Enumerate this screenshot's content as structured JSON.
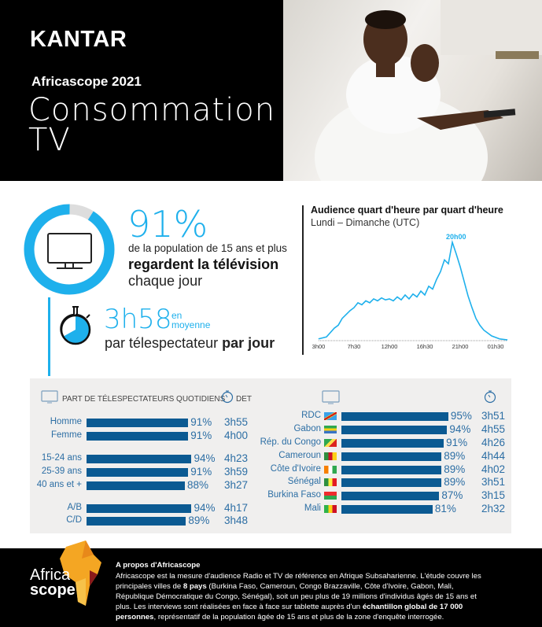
{
  "header": {
    "brand": "KANTAR",
    "subtitle": "Africascope 2021",
    "title_line1": "Consommation",
    "title_line2": "TV"
  },
  "reach": {
    "percent_label": "91%",
    "percent": 91,
    "line1": "de la population de 15 ans et plus",
    "line2": "regardent la télévision",
    "line3": "chaque jour",
    "icon": "tv-icon"
  },
  "duration": {
    "value": "3h58",
    "suffix1": "en",
    "suffix2": "moyenne",
    "line_a": "par télespectateur ",
    "line_b": "par jour",
    "icon": "stopwatch-icon"
  },
  "chart_data": {
    "type": "line",
    "title": "Audience quart d'heure par quart d'heure",
    "subtitle": "Lundi – Dimanche (UTC)",
    "annotation": "20h00",
    "x_ticks": [
      "3h00",
      "7h30",
      "12h00",
      "16h30",
      "21h00",
      "01h30"
    ],
    "x_hours": [
      3,
      4,
      5,
      5.5,
      6,
      6.5,
      7,
      7.5,
      8,
      8.5,
      9,
      9.5,
      10,
      10.5,
      11,
      11.5,
      12,
      12.5,
      13,
      13.5,
      14,
      14.5,
      15,
      15.5,
      16,
      16.5,
      17,
      17.5,
      18,
      18.5,
      19,
      19.5,
      20,
      20.5,
      21,
      21.5,
      22,
      22.5,
      23,
      23.5,
      24,
      25,
      26,
      27
    ],
    "y_relative": [
      1,
      3,
      12,
      15,
      22,
      26,
      30,
      33,
      38,
      36,
      40,
      38,
      42,
      40,
      43,
      41,
      42,
      40,
      44,
      41,
      46,
      42,
      47,
      44,
      50,
      46,
      55,
      52,
      62,
      70,
      82,
      78,
      100,
      88,
      75,
      60,
      45,
      33,
      22,
      15,
      10,
      4,
      1,
      0
    ],
    "y_axis": "none (relative, peak = 100)",
    "color": "#1eb0ec",
    "grid": false
  },
  "colors": {
    "accent": "#1eb0ec",
    "bar": "#0b5a92",
    "text_blue": "#2c6ea4",
    "panel": "#f0efee"
  },
  "profile": {
    "header": "PART DE TÉLESPECTATEURS QUOTIDIENS",
    "det": "DET",
    "rows": [
      {
        "label": "Homme",
        "pct": 91,
        "pct_label": "91%",
        "time": "3h55"
      },
      {
        "label": "Femme",
        "pct": 91,
        "pct_label": "91%",
        "time": "4h00"
      },
      {
        "label": "15-24 ans",
        "pct": 94,
        "pct_label": "94%",
        "time": "4h23"
      },
      {
        "label": "25-39 ans",
        "pct": 91,
        "pct_label": "91%",
        "time": "3h59"
      },
      {
        "label": "40 ans et +",
        "pct": 88,
        "pct_label": "88%",
        "time": "3h27"
      },
      {
        "label": "A/B",
        "pct": 94,
        "pct_label": "94%",
        "time": "4h17"
      },
      {
        "label": "C/D",
        "pct": 89,
        "pct_label": "89%",
        "time": "3h48"
      }
    ]
  },
  "countries": [
    {
      "label": "RDC",
      "flag": "flag-drc",
      "pct": 95,
      "pct_label": "95%",
      "time": "3h51"
    },
    {
      "label": "Gabon",
      "flag": "flag-gabon",
      "pct": 94,
      "pct_label": "94%",
      "time": "4h55"
    },
    {
      "label": "Rép. du Congo",
      "flag": "flag-congo",
      "pct": 91,
      "pct_label": "91%",
      "time": "4h26"
    },
    {
      "label": "Cameroun",
      "flag": "flag-cameroon",
      "pct": 89,
      "pct_label": "89%",
      "time": "4h44"
    },
    {
      "label": "Côte d'Ivoire",
      "flag": "flag-ivory-coast",
      "pct": 89,
      "pct_label": "89%",
      "time": "4h02"
    },
    {
      "label": "Sénégal",
      "flag": "flag-senegal",
      "pct": 89,
      "pct_label": "89%",
      "time": "3h51"
    },
    {
      "label": "Burkina Faso",
      "flag": "flag-burkina-faso",
      "pct": 87,
      "pct_label": "87%",
      "time": "3h15"
    },
    {
      "label": "Mali",
      "flag": "flag-mali",
      "pct": 81,
      "pct_label": "81%",
      "time": "2h32"
    }
  ],
  "footer": {
    "logo_top": "Africa",
    "logo_bottom": "scope",
    "title": "A propos d'Africascope",
    "p1": "Africascope est la mesure d'audience Radio et TV de référence en Afrique Subsaharienne. L'étude couvre les principales villes de ",
    "p1_bold": "8 pays",
    "p2": " (Burkina Faso, Cameroun, Congo Brazzaville, Côte d'Ivoire, Gabon, Mali, République Démocratique du Congo, Sénégal), soit un peu plus de 19 millions d'individus âgés de 15 ans et plus. Les interviews sont réalisées en face à face sur tablette auprès d'un ",
    "p2_bold": "échantillon global de 17 000 personnes",
    "p3": ", représentatif de la population âgée de 15 ans et plus de la zone d'enquête interrogée."
  }
}
